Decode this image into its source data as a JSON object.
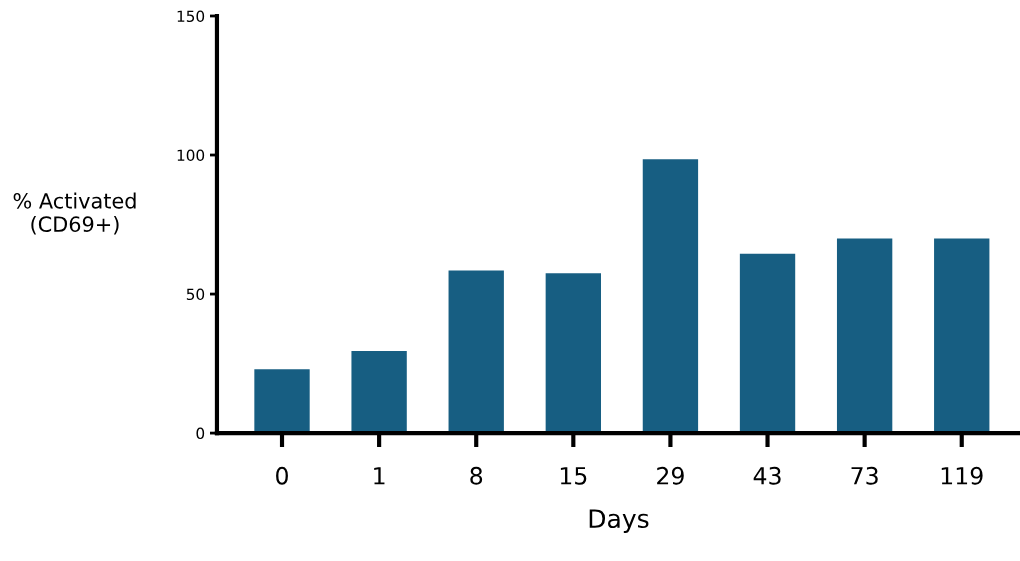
{
  "chart_data": {
    "type": "bar",
    "xlabel": "Days",
    "ylabel": "% Activated\n(CD69+)",
    "categories": [
      "0",
      "1",
      "8",
      "15",
      "29",
      "43",
      "73",
      "119"
    ],
    "values": [
      23,
      29.5,
      58.5,
      57.5,
      98.5,
      64.5,
      70,
      70
    ],
    "color": "#175e82",
    "ylim": [
      0,
      150
    ],
    "yticks": [
      0,
      50,
      100,
      150
    ],
    "grid": false,
    "legend": false
  }
}
